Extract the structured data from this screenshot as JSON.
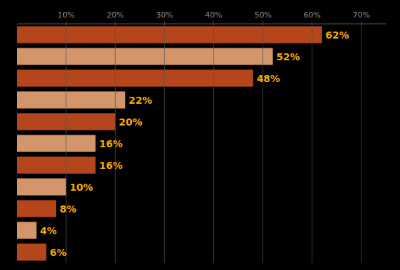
{
  "chart_data": {
    "type": "bar",
    "orientation": "horizontal",
    "categories": [
      null,
      null,
      null,
      null,
      null,
      null,
      null,
      null,
      null,
      null,
      null
    ],
    "values": [
      62,
      52,
      48,
      22,
      20,
      16,
      16,
      10,
      8,
      4,
      6
    ],
    "value_labels": [
      "62%",
      "52%",
      "48%",
      "22%",
      "20%",
      "16%",
      "16%",
      "10%",
      "8%",
      "4%",
      "6%"
    ],
    "colors": [
      "#b5451b",
      "#d4956a",
      "#b5451b",
      "#d4956a",
      "#b5451b",
      "#d4956a",
      "#b5451b",
      "#d4956a",
      "#b5451b",
      "#d4956a",
      "#b5451b"
    ],
    "data_labels": true,
    "xlim": [
      0,
      75
    ],
    "xticks": [
      {
        "value": 10,
        "label": "10%"
      },
      {
        "value": 20,
        "label": "20%"
      },
      {
        "value": 30,
        "label": "30%"
      },
      {
        "value": 40,
        "label": "40%"
      },
      {
        "value": 50,
        "label": "50%"
      },
      {
        "value": 60,
        "label": "60%"
      },
      {
        "value": 70,
        "label": "70%"
      }
    ],
    "grid": true,
    "tick_labels": "x"
  }
}
